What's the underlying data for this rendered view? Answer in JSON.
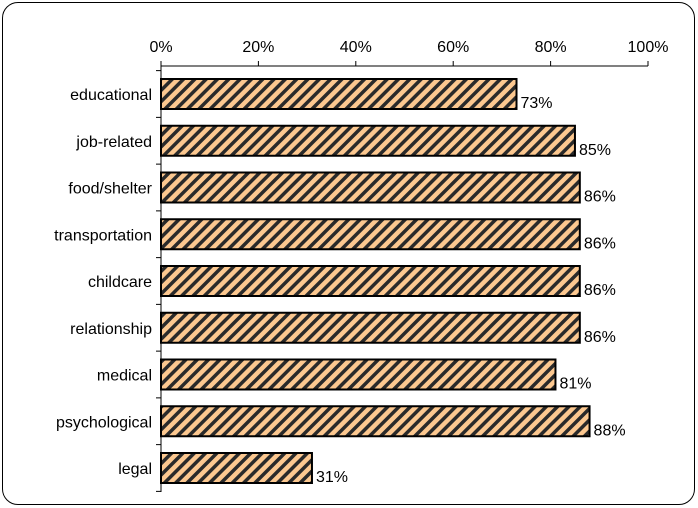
{
  "chart_data": {
    "type": "bar",
    "orientation": "horizontal",
    "title": "",
    "xlabel": "",
    "ylabel": "",
    "categories": [
      "educational",
      "job-related",
      "food/shelter",
      "transportation",
      "childcare",
      "relationship",
      "medical",
      "psychological",
      "legal"
    ],
    "values": [
      73,
      85,
      86,
      86,
      86,
      86,
      81,
      88,
      31
    ],
    "value_labels": [
      "73%",
      "85%",
      "86%",
      "86%",
      "86%",
      "86%",
      "81%",
      "88%",
      "31%"
    ],
    "xlim": [
      0,
      100
    ],
    "x_ticks": [
      0,
      20,
      40,
      60,
      80,
      100
    ],
    "x_tick_labels": [
      "0%",
      "20%",
      "40%",
      "60%",
      "80%",
      "100%"
    ],
    "x_axis_position": "top",
    "grid": false,
    "legend": "none",
    "colors": {
      "bar_fill": "#fcc890",
      "bar_hatch": "#2a2a2a",
      "bar_stroke": "#000000",
      "axis": "#000000",
      "text": "#000000"
    }
  }
}
